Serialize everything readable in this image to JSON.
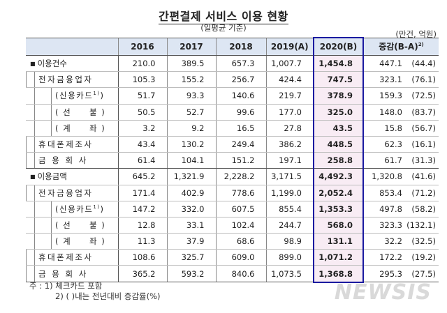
{
  "title": "간편결제 서비스 이용 현황",
  "subtitle": "(일평균 기준)",
  "unit": "(만건, 억원)",
  "columns": [
    "2016",
    "2017",
    "2018",
    "2019(A)",
    "2020(B)",
    "증감(B-A)"
  ],
  "change_sup": "2)",
  "highlight_color": "#1a1aa0",
  "rows": [
    {
      "label": "이용건수",
      "level": 0,
      "values": [
        "210.0",
        "389.5",
        "657.3",
        "1,007.7",
        "1,454.8"
      ],
      "change": "447.1",
      "pct": "(44.4)"
    },
    {
      "label": "전자금융업자",
      "level": 1,
      "values": [
        "105.3",
        "155.2",
        "256.7",
        "424.4",
        "747.5"
      ],
      "change": "323.1",
      "pct": "(76.1)"
    },
    {
      "label": "(신용카드",
      "sup": "1)",
      "label_end": ")",
      "level": 2,
      "values": [
        "51.7",
        "93.3",
        "140.6",
        "219.7",
        "378.9"
      ],
      "change": "159.3",
      "pct": "(72.5)"
    },
    {
      "label": "( 선     불 )",
      "level": 2,
      "values": [
        "50.5",
        "52.7",
        "99.6",
        "177.0",
        "325.0"
      ],
      "change": "148.0",
      "pct": "(83.7)"
    },
    {
      "label": "( 계     좌 )",
      "level": 2,
      "values": [
        "3.2",
        "9.2",
        "16.5",
        "27.8",
        "43.5"
      ],
      "change": "15.8",
      "pct": "(56.7)"
    },
    {
      "label": "휴대폰제조사",
      "level": 1,
      "values": [
        "43.4",
        "130.2",
        "249.4",
        "386.2",
        "448.5"
      ],
      "change": "62.3",
      "pct": "(16.1)"
    },
    {
      "label": "금 용 회 사",
      "level": 1,
      "values": [
        "61.4",
        "104.1",
        "151.2",
        "197.1",
        "258.8"
      ],
      "change": "61.7",
      "pct": "(31.3)"
    },
    {
      "label": "이용금액",
      "level": 0,
      "values": [
        "645.2",
        "1,321.9",
        "2,228.2",
        "3,171.5",
        "4,492.3"
      ],
      "change": "1,320.8",
      "pct": "(41.6)"
    },
    {
      "label": "전자금융업자",
      "level": 1,
      "values": [
        "171.4",
        "402.9",
        "778.6",
        "1,199.0",
        "2,052.4"
      ],
      "change": "853.4",
      "pct": "(71.2)"
    },
    {
      "label": "(신용카드",
      "sup": "1)",
      "label_end": ")",
      "level": 2,
      "values": [
        "147.2",
        "332.0",
        "607.5",
        "855.4",
        "1,353.3"
      ],
      "change": "497.8",
      "pct": "(58.2)"
    },
    {
      "label": "( 선     불 )",
      "level": 2,
      "values": [
        "12.8",
        "33.1",
        "102.4",
        "244.7",
        "568.0"
      ],
      "change": "323.3",
      "pct": "(132.1)"
    },
    {
      "label": "( 계     좌 )",
      "level": 2,
      "values": [
        "11.3",
        "37.9",
        "68.6",
        "98.9",
        "131.1"
      ],
      "change": "32.2",
      "pct": "(32.5)"
    },
    {
      "label": "휴대폰제조사",
      "level": 1,
      "values": [
        "108.6",
        "325.7",
        "609.0",
        "899.0",
        "1,071.2"
      ],
      "change": "172.2",
      "pct": "(19.2)"
    },
    {
      "label": "금 용 회 사",
      "level": 1,
      "values": [
        "365.2",
        "593.2",
        "840.6",
        "1,073.5",
        "1,368.8"
      ],
      "change": "295.3",
      "pct": "(27.5)"
    }
  ],
  "notes": {
    "prefix": "주 :",
    "note1": "1) 체크카드 포함",
    "note2": "2) (   )내는 전년대비 증감률(%)"
  },
  "watermark": "NEWSIS"
}
